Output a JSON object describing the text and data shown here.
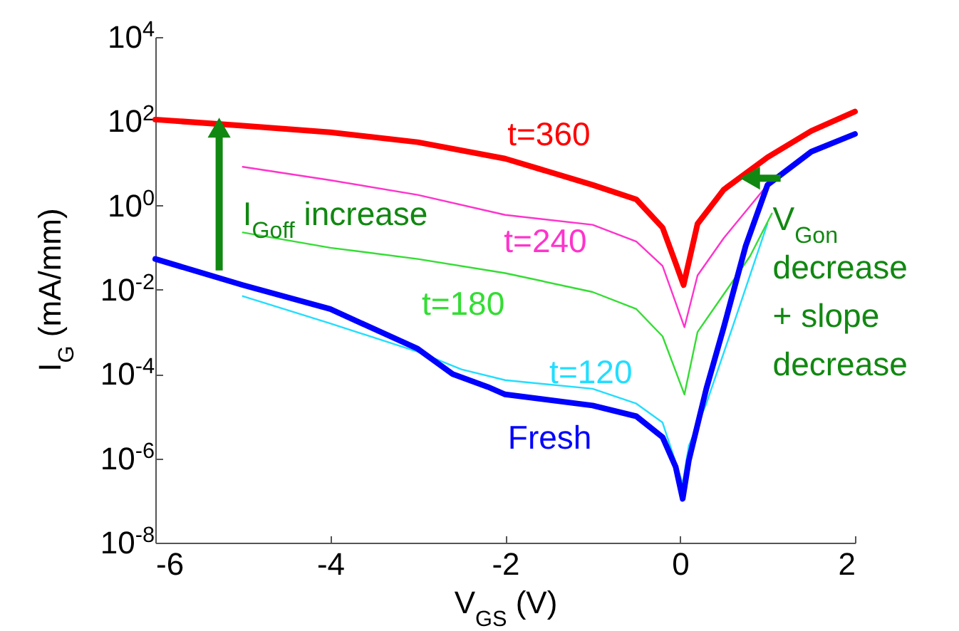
{
  "chart_data": {
    "type": "line",
    "xlabel": "V$_{GS}$ (V)",
    "ylabel": "I$_{G}$ (mA/mm)",
    "log": "y",
    "grid": false,
    "legend": false,
    "marker": "none",
    "line_style": "solid",
    "xlim": [
      -6,
      2
    ],
    "xticks": [
      -6,
      -4,
      -2,
      0,
      2
    ],
    "ylim": [
      1e-08,
      10000
    ],
    "yticks": [
      {
        "value": 1e-08,
        "label": "10$^{-8}$"
      },
      {
        "value": 1e-06,
        "label": "10$^{-6}$"
      },
      {
        "value": 0.0001,
        "label": "10$^{-4}$"
      },
      {
        "value": 0.01,
        "label": "10$^{-2}$"
      },
      {
        "value": 1,
        "label": "10$^{0}$"
      },
      {
        "value": 100,
        "label": "10$^{2}$"
      },
      {
        "value": 10000,
        "label": "10$^{4}$"
      }
    ],
    "series": [
      {
        "name": "Fresh",
        "color": "#0000ff",
        "x": [
          -6,
          -5,
          -4,
          -3,
          -2.6,
          -2.2,
          -2,
          -1,
          -0.5,
          -0.2,
          -0.05,
          0.03,
          0.1,
          0.3,
          0.5,
          0.75,
          1,
          1.5,
          2
        ],
        "values": [
          0.054,
          0.013,
          0.0035,
          0.0004,
          0.0001,
          5e-05,
          3.3e-05,
          1.8e-05,
          1e-05,
          3.2e-06,
          6.3e-07,
          1.1e-07,
          8.9e-07,
          4.5e-05,
          0.0013,
          0.11,
          3.1,
          19,
          50
        ]
      },
      {
        "name": "t=120",
        "color": "#22ddff",
        "x": [
          -5,
          -4,
          -3,
          -2.5,
          -2,
          -1,
          -0.5,
          -0.2,
          0.03,
          0.1,
          0.3,
          0.6,
          1.0
        ],
        "values": [
          0.0071,
          0.0016,
          0.00034,
          0.00013,
          7.2e-05,
          4.5e-05,
          2e-05,
          7.1e-06,
          2.5e-07,
          2e-06,
          2e-05,
          0.0013,
          0.38
        ]
      },
      {
        "name": "t=180",
        "color": "#33dd33",
        "x": [
          -5,
          -4,
          -3,
          -2,
          -1,
          -0.5,
          -0.2,
          0.05,
          0.2,
          0.5,
          0.8,
          1.05
        ],
        "values": [
          0.23,
          0.1,
          0.054,
          0.025,
          0.0089,
          0.0035,
          0.00079,
          3.3e-05,
          0.001,
          0.0079,
          0.063,
          0.65
        ]
      },
      {
        "name": "t=240",
        "color": "#ff33cc",
        "x": [
          -5,
          -4,
          -3,
          -2,
          -1,
          -0.5,
          -0.2,
          0.05,
          0.2,
          0.5,
          1
        ],
        "values": [
          8.3,
          4,
          1.8,
          0.6,
          0.35,
          0.14,
          0.037,
          0.0013,
          0.022,
          0.17,
          3.1
        ]
      },
      {
        "name": "t=360",
        "color": "#ff0000",
        "x": [
          -6,
          -5,
          -4,
          -3,
          -2,
          -1,
          -0.5,
          -0.2,
          -0.05,
          0.04,
          0.2,
          0.5,
          1,
          1.5,
          2
        ],
        "values": [
          110,
          79,
          55,
          32,
          13,
          3.1,
          1.4,
          0.3,
          0.043,
          0.013,
          0.37,
          2.4,
          14,
          59,
          170
        ]
      }
    ],
    "annotations": [
      "I$_{Goff}$ increase",
      "V$_{Gon}$\ndecrease\n+ slope\ndecrease"
    ]
  }
}
